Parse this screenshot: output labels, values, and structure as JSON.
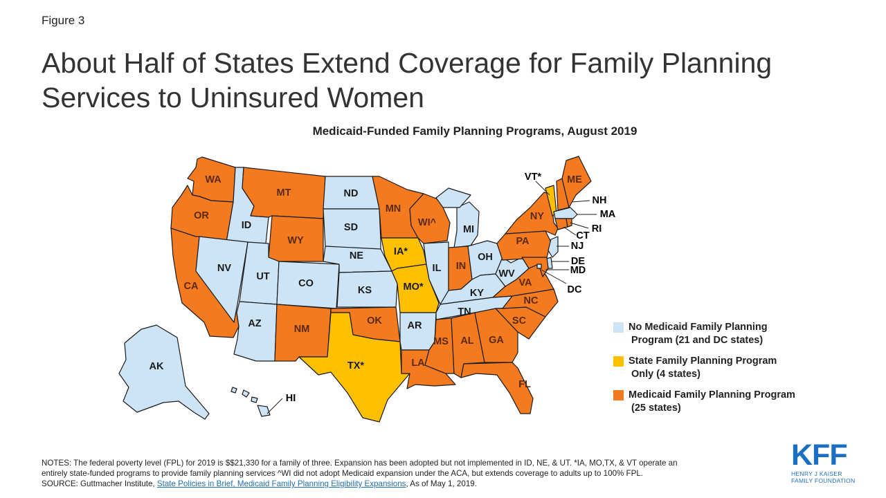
{
  "figure_label": "Figure 3",
  "title_line1": "About Half of States Extend Coverage for Family Planning",
  "title_line2": "Services to Uninsured Women",
  "subtitle": "Medicaid-Funded Family Planning Programs, August 2019",
  "colors": {
    "none": "#cce4f6",
    "state": "#ffc000",
    "medicaid": "#f47a20",
    "border": "#1a1a1a"
  },
  "legend": [
    {
      "key": "none",
      "line1": "No Medicaid Family Planning",
      "line2": "Program (21 and DC states)"
    },
    {
      "key": "state",
      "line1": "State Family Planning Program",
      "line2": "Only (4 states)"
    },
    {
      "key": "medicaid",
      "line1": "Medicaid Family Planning Program",
      "line2": "(25 states)"
    }
  ],
  "states": [
    {
      "abbr": "WA",
      "label": "WA",
      "category": "medicaid"
    },
    {
      "abbr": "OR",
      "label": "OR",
      "category": "medicaid"
    },
    {
      "abbr": "CA",
      "label": "CA",
      "category": "medicaid"
    },
    {
      "abbr": "ID",
      "label": "ID",
      "category": "none"
    },
    {
      "abbr": "NV",
      "label": "NV",
      "category": "none"
    },
    {
      "abbr": "MT",
      "label": "MT",
      "category": "medicaid"
    },
    {
      "abbr": "WY",
      "label": "WY",
      "category": "medicaid"
    },
    {
      "abbr": "UT",
      "label": "UT",
      "category": "none"
    },
    {
      "abbr": "CO",
      "label": "CO",
      "category": "none"
    },
    {
      "abbr": "AZ",
      "label": "AZ",
      "category": "none"
    },
    {
      "abbr": "NM",
      "label": "NM",
      "category": "medicaid"
    },
    {
      "abbr": "ND",
      "label": "ND",
      "category": "none"
    },
    {
      "abbr": "SD",
      "label": "SD",
      "category": "none"
    },
    {
      "abbr": "NE",
      "label": "NE",
      "category": "none"
    },
    {
      "abbr": "KS",
      "label": "KS",
      "category": "none"
    },
    {
      "abbr": "OK",
      "label": "OK",
      "category": "medicaid"
    },
    {
      "abbr": "TX",
      "label": "TX*",
      "category": "state"
    },
    {
      "abbr": "MN",
      "label": "MN",
      "category": "medicaid"
    },
    {
      "abbr": "IA",
      "label": "IA*",
      "category": "state"
    },
    {
      "abbr": "MO",
      "label": "MO*",
      "category": "state"
    },
    {
      "abbr": "AR",
      "label": "AR",
      "category": "none"
    },
    {
      "abbr": "LA",
      "label": "LA",
      "category": "medicaid"
    },
    {
      "abbr": "WI",
      "label": "WI^",
      "category": "medicaid"
    },
    {
      "abbr": "IL",
      "label": "IL",
      "category": "none"
    },
    {
      "abbr": "MI",
      "label": "MI",
      "category": "none"
    },
    {
      "abbr": "IN",
      "label": "IN",
      "category": "medicaid"
    },
    {
      "abbr": "OH",
      "label": "OH",
      "category": "none"
    },
    {
      "abbr": "KY",
      "label": "KY",
      "category": "none"
    },
    {
      "abbr": "TN",
      "label": "TN",
      "category": "none"
    },
    {
      "abbr": "MS",
      "label": "MS",
      "category": "medicaid"
    },
    {
      "abbr": "AL",
      "label": "AL",
      "category": "medicaid"
    },
    {
      "abbr": "GA",
      "label": "GA",
      "category": "medicaid"
    },
    {
      "abbr": "FL",
      "label": "FL",
      "category": "medicaid"
    },
    {
      "abbr": "SC",
      "label": "SC",
      "category": "medicaid"
    },
    {
      "abbr": "NC",
      "label": "NC",
      "category": "medicaid"
    },
    {
      "abbr": "VA",
      "label": "VA",
      "category": "medicaid"
    },
    {
      "abbr": "WV",
      "label": "WV",
      "category": "none"
    },
    {
      "abbr": "PA",
      "label": "PA",
      "category": "medicaid"
    },
    {
      "abbr": "NY",
      "label": "NY",
      "category": "medicaid"
    },
    {
      "abbr": "VT",
      "label": "VT*",
      "category": "state"
    },
    {
      "abbr": "NH",
      "label": "NH",
      "category": "medicaid"
    },
    {
      "abbr": "ME",
      "label": "ME",
      "category": "medicaid"
    },
    {
      "abbr": "MA",
      "label": "MA",
      "category": "none"
    },
    {
      "abbr": "RI",
      "label": "RI",
      "category": "medicaid"
    },
    {
      "abbr": "CT",
      "label": "CT",
      "category": "medicaid"
    },
    {
      "abbr": "NJ",
      "label": "NJ",
      "category": "none"
    },
    {
      "abbr": "DE",
      "label": "DE",
      "category": "none"
    },
    {
      "abbr": "MD",
      "label": "MD",
      "category": "medicaid"
    },
    {
      "abbr": "DC",
      "label": "DC",
      "category": "none"
    },
    {
      "abbr": "AK",
      "label": "AK",
      "category": "none"
    },
    {
      "abbr": "HI",
      "label": "HI",
      "category": "none"
    }
  ],
  "notes": {
    "line1": "NOTES: The federal poverty level (FPL) for 2019 is $$21,330 for a family of three. Expansion has been adopted but not implemented in ID, NE, & UT. *IA, MO,TX, & VT operate an",
    "line2": "entirely state-funded programs to provide family planning services ^WI did not adopt Medicaid expansion under the ACA, but extends coverage to adults up to 100% FPL.",
    "source_prefix": "SOURCE: Guttmacher Institute, ",
    "source_link": "State Policies in Brief, Medicaid Family Planning Eligibility Expansions",
    "source_suffix": ", As of May 1, 2019."
  },
  "logo": {
    "mark": "KFF",
    "sub1": "HENRY J KAISER",
    "sub2": "FAMILY FOUNDATION"
  }
}
